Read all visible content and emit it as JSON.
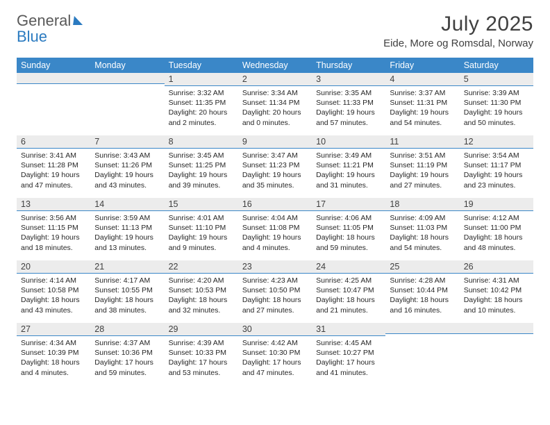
{
  "brand": {
    "line1": "General",
    "line2": "Blue",
    "accent_color": "#2a7ac0",
    "text_color": "#595959"
  },
  "header": {
    "month_title": "July 2025",
    "location": "Eide, More og Romsdal, Norway",
    "title_fontsize": 30,
    "location_fontsize": 15
  },
  "colors": {
    "header_bg": "#3a87c8",
    "header_text": "#ffffff",
    "daynum_bg": "#ececec",
    "daynum_border": "#3a87c8",
    "body_text": "#262626",
    "page_bg": "#ffffff"
  },
  "daynames": [
    "Sunday",
    "Monday",
    "Tuesday",
    "Wednesday",
    "Thursday",
    "Friday",
    "Saturday"
  ],
  "weeks": [
    [
      {
        "n": "",
        "sunrise": "",
        "sunset": "",
        "daylight": ""
      },
      {
        "n": "",
        "sunrise": "",
        "sunset": "",
        "daylight": ""
      },
      {
        "n": "1",
        "sunrise": "Sunrise: 3:32 AM",
        "sunset": "Sunset: 11:35 PM",
        "daylight": "Daylight: 20 hours and 2 minutes."
      },
      {
        "n": "2",
        "sunrise": "Sunrise: 3:34 AM",
        "sunset": "Sunset: 11:34 PM",
        "daylight": "Daylight: 20 hours and 0 minutes."
      },
      {
        "n": "3",
        "sunrise": "Sunrise: 3:35 AM",
        "sunset": "Sunset: 11:33 PM",
        "daylight": "Daylight: 19 hours and 57 minutes."
      },
      {
        "n": "4",
        "sunrise": "Sunrise: 3:37 AM",
        "sunset": "Sunset: 11:31 PM",
        "daylight": "Daylight: 19 hours and 54 minutes."
      },
      {
        "n": "5",
        "sunrise": "Sunrise: 3:39 AM",
        "sunset": "Sunset: 11:30 PM",
        "daylight": "Daylight: 19 hours and 50 minutes."
      }
    ],
    [
      {
        "n": "6",
        "sunrise": "Sunrise: 3:41 AM",
        "sunset": "Sunset: 11:28 PM",
        "daylight": "Daylight: 19 hours and 47 minutes."
      },
      {
        "n": "7",
        "sunrise": "Sunrise: 3:43 AM",
        "sunset": "Sunset: 11:26 PM",
        "daylight": "Daylight: 19 hours and 43 minutes."
      },
      {
        "n": "8",
        "sunrise": "Sunrise: 3:45 AM",
        "sunset": "Sunset: 11:25 PM",
        "daylight": "Daylight: 19 hours and 39 minutes."
      },
      {
        "n": "9",
        "sunrise": "Sunrise: 3:47 AM",
        "sunset": "Sunset: 11:23 PM",
        "daylight": "Daylight: 19 hours and 35 minutes."
      },
      {
        "n": "10",
        "sunrise": "Sunrise: 3:49 AM",
        "sunset": "Sunset: 11:21 PM",
        "daylight": "Daylight: 19 hours and 31 minutes."
      },
      {
        "n": "11",
        "sunrise": "Sunrise: 3:51 AM",
        "sunset": "Sunset: 11:19 PM",
        "daylight": "Daylight: 19 hours and 27 minutes."
      },
      {
        "n": "12",
        "sunrise": "Sunrise: 3:54 AM",
        "sunset": "Sunset: 11:17 PM",
        "daylight": "Daylight: 19 hours and 23 minutes."
      }
    ],
    [
      {
        "n": "13",
        "sunrise": "Sunrise: 3:56 AM",
        "sunset": "Sunset: 11:15 PM",
        "daylight": "Daylight: 19 hours and 18 minutes."
      },
      {
        "n": "14",
        "sunrise": "Sunrise: 3:59 AM",
        "sunset": "Sunset: 11:13 PM",
        "daylight": "Daylight: 19 hours and 13 minutes."
      },
      {
        "n": "15",
        "sunrise": "Sunrise: 4:01 AM",
        "sunset": "Sunset: 11:10 PM",
        "daylight": "Daylight: 19 hours and 9 minutes."
      },
      {
        "n": "16",
        "sunrise": "Sunrise: 4:04 AM",
        "sunset": "Sunset: 11:08 PM",
        "daylight": "Daylight: 19 hours and 4 minutes."
      },
      {
        "n": "17",
        "sunrise": "Sunrise: 4:06 AM",
        "sunset": "Sunset: 11:05 PM",
        "daylight": "Daylight: 18 hours and 59 minutes."
      },
      {
        "n": "18",
        "sunrise": "Sunrise: 4:09 AM",
        "sunset": "Sunset: 11:03 PM",
        "daylight": "Daylight: 18 hours and 54 minutes."
      },
      {
        "n": "19",
        "sunrise": "Sunrise: 4:12 AM",
        "sunset": "Sunset: 11:00 PM",
        "daylight": "Daylight: 18 hours and 48 minutes."
      }
    ],
    [
      {
        "n": "20",
        "sunrise": "Sunrise: 4:14 AM",
        "sunset": "Sunset: 10:58 PM",
        "daylight": "Daylight: 18 hours and 43 minutes."
      },
      {
        "n": "21",
        "sunrise": "Sunrise: 4:17 AM",
        "sunset": "Sunset: 10:55 PM",
        "daylight": "Daylight: 18 hours and 38 minutes."
      },
      {
        "n": "22",
        "sunrise": "Sunrise: 4:20 AM",
        "sunset": "Sunset: 10:53 PM",
        "daylight": "Daylight: 18 hours and 32 minutes."
      },
      {
        "n": "23",
        "sunrise": "Sunrise: 4:23 AM",
        "sunset": "Sunset: 10:50 PM",
        "daylight": "Daylight: 18 hours and 27 minutes."
      },
      {
        "n": "24",
        "sunrise": "Sunrise: 4:25 AM",
        "sunset": "Sunset: 10:47 PM",
        "daylight": "Daylight: 18 hours and 21 minutes."
      },
      {
        "n": "25",
        "sunrise": "Sunrise: 4:28 AM",
        "sunset": "Sunset: 10:44 PM",
        "daylight": "Daylight: 18 hours and 16 minutes."
      },
      {
        "n": "26",
        "sunrise": "Sunrise: 4:31 AM",
        "sunset": "Sunset: 10:42 PM",
        "daylight": "Daylight: 18 hours and 10 minutes."
      }
    ],
    [
      {
        "n": "27",
        "sunrise": "Sunrise: 4:34 AM",
        "sunset": "Sunset: 10:39 PM",
        "daylight": "Daylight: 18 hours and 4 minutes."
      },
      {
        "n": "28",
        "sunrise": "Sunrise: 4:37 AM",
        "sunset": "Sunset: 10:36 PM",
        "daylight": "Daylight: 17 hours and 59 minutes."
      },
      {
        "n": "29",
        "sunrise": "Sunrise: 4:39 AM",
        "sunset": "Sunset: 10:33 PM",
        "daylight": "Daylight: 17 hours and 53 minutes."
      },
      {
        "n": "30",
        "sunrise": "Sunrise: 4:42 AM",
        "sunset": "Sunset: 10:30 PM",
        "daylight": "Daylight: 17 hours and 47 minutes."
      },
      {
        "n": "31",
        "sunrise": "Sunrise: 4:45 AM",
        "sunset": "Sunset: 10:27 PM",
        "daylight": "Daylight: 17 hours and 41 minutes."
      },
      {
        "n": "",
        "sunrise": "",
        "sunset": "",
        "daylight": ""
      },
      {
        "n": "",
        "sunrise": "",
        "sunset": "",
        "daylight": ""
      }
    ]
  ]
}
